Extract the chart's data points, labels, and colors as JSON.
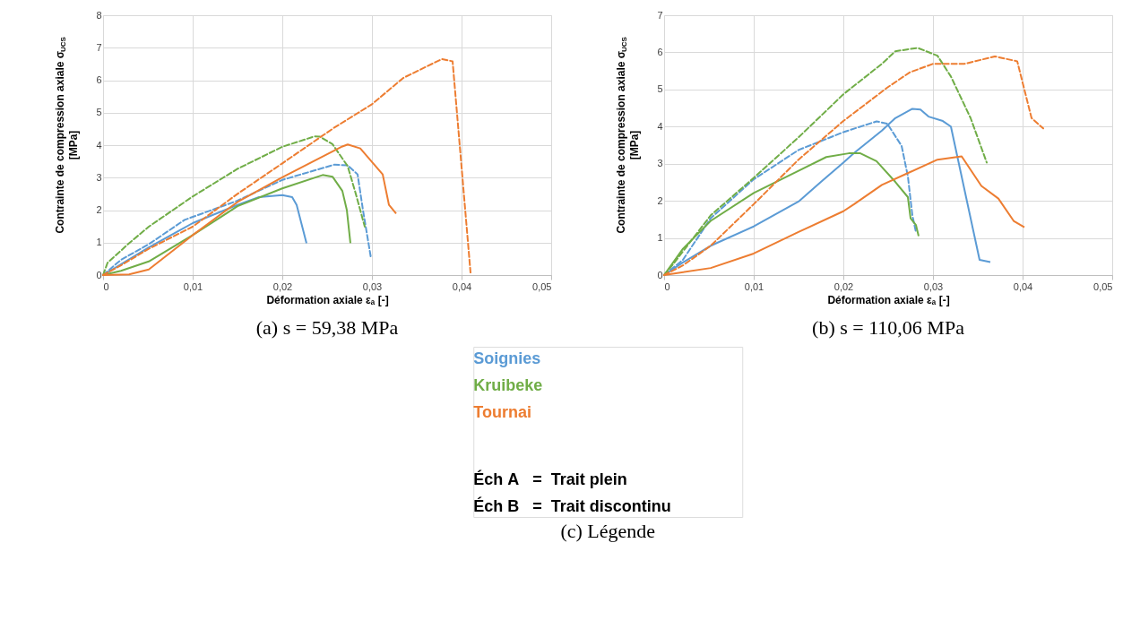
{
  "chart_data": [
    {
      "type": "line",
      "title": "(a) s = 59,38 MPa",
      "xlabel": "Déformation axiale εₐ  [-]",
      "ylabel": "Contrainte de compression axiale σ$_{UCS}$ [MPa]",
      "xlim": [
        0,
        0.05
      ],
      "xticks": [
        0,
        {
          "value": 0.01,
          "label": "0,01"
        },
        {
          "value": 0.02,
          "label": "0,02"
        },
        {
          "value": 0.03,
          "label": "0,03"
        },
        {
          "value": 0.04,
          "label": "0,04"
        },
        {
          "value": 0.05,
          "label": "0,05"
        }
      ],
      "ylim": [
        0,
        8
      ],
      "yticks": [
        0,
        1,
        2,
        3,
        4,
        5,
        6,
        7,
        8
      ],
      "grid": true,
      "marker": "none",
      "series": [
        {
          "color": "#5b9bd5",
          "line_style": "solid",
          "x": [
            0,
            0.0051,
            0.01,
            0.015,
            0.0174,
            0.02,
            0.0211,
            0.0216,
            0.0227
          ],
          "values": [
            0,
            0.85,
            1.6,
            2.16,
            2.4,
            2.46,
            2.4,
            2.16,
            0.98
          ]
        },
        {
          "color": "#5b9bd5",
          "line_style": "dashed",
          "x": [
            0,
            0.002,
            0.0051,
            0.0091,
            0.015,
            0.02,
            0.0258,
            0.0273,
            0.0284,
            0.029,
            0.0299
          ],
          "values": [
            0,
            0.47,
            0.95,
            1.7,
            2.29,
            2.93,
            3.4,
            3.38,
            3.1,
            2.0,
            0.51
          ]
        },
        {
          "color": "#70ad47",
          "line_style": "solid",
          "x": [
            0,
            0.002,
            0.0051,
            0.01,
            0.015,
            0.02,
            0.0245,
            0.0256,
            0.0267,
            0.0272,
            0.0276
          ],
          "values": [
            0,
            0.13,
            0.42,
            1.23,
            2.12,
            2.67,
            3.08,
            3.03,
            2.59,
            2.0,
            0.98
          ]
        },
        {
          "color": "#70ad47",
          "line_style": "dashed",
          "x": [
            0,
            0.0005,
            0.0029,
            0.0051,
            0.01,
            0.015,
            0.02,
            0.0236,
            0.0242,
            0.0256,
            0.0273,
            0.0282,
            0.0292
          ],
          "values": [
            0,
            0.38,
            0.98,
            1.49,
            2.42,
            3.27,
            3.95,
            4.27,
            4.26,
            4.03,
            3.35,
            2.5,
            1.49
          ]
        },
        {
          "color": "#ed7d31",
          "line_style": "solid",
          "x": [
            0,
            0.0029,
            0.0051,
            0.01,
            0.015,
            0.02,
            0.0267,
            0.0273,
            0.0287,
            0.0312,
            0.0319,
            0.0327
          ],
          "values": [
            0,
            0.02,
            0.17,
            1.23,
            2.25,
            3.01,
            3.96,
            4.02,
            3.9,
            3.1,
            2.16,
            1.89
          ]
        },
        {
          "color": "#ed7d31",
          "line_style": "dashed",
          "x": [
            0,
            0.002,
            0.0051,
            0.01,
            0.015,
            0.02,
            0.0258,
            0.03,
            0.0335,
            0.0378,
            0.039,
            0.041
          ],
          "values": [
            0,
            0.3,
            0.81,
            1.49,
            2.5,
            3.44,
            4.54,
            5.26,
            6.07,
            6.65,
            6.58,
            0.08
          ]
        }
      ]
    },
    {
      "type": "line",
      "title": "(b) s = 110,06 MPa",
      "xlabel": "Déformation axiale εₐ  [-]",
      "ylabel": "Contrainte de compression axiale σ$_{UCS}$ [MPa]",
      "xlim": [
        0,
        0.05
      ],
      "xticks": [
        0,
        {
          "value": 0.01,
          "label": "0,01"
        },
        {
          "value": 0.02,
          "label": "0,02"
        },
        {
          "value": 0.03,
          "label": "0,03"
        },
        {
          "value": 0.04,
          "label": "0,04"
        },
        {
          "value": 0.05,
          "label": "0,05"
        }
      ],
      "ylim": [
        0,
        7
      ],
      "yticks": [
        0,
        1,
        2,
        3,
        4,
        5,
        6,
        7
      ],
      "grid": true,
      "marker": "none",
      "series": [
        {
          "color": "#5b9bd5",
          "line_style": "solid",
          "x": [
            0,
            0.0021,
            0.0052,
            0.01,
            0.015,
            0.0175,
            0.02,
            0.0212,
            0.0243,
            0.0258,
            0.0277,
            0.0286,
            0.0295,
            0.0311,
            0.032,
            0.0352,
            0.0364
          ],
          "values": [
            0,
            0.34,
            0.79,
            1.31,
            1.98,
            2.51,
            3.03,
            3.29,
            3.89,
            4.23,
            4.48,
            4.46,
            4.27,
            4.15,
            4.0,
            0.41,
            0.35
          ]
        },
        {
          "color": "#5b9bd5",
          "line_style": "dashed",
          "x": [
            0,
            0.0021,
            0.0052,
            0.01,
            0.015,
            0.02,
            0.0237,
            0.0249,
            0.0265,
            0.0272,
            0.0277,
            0.0281
          ],
          "values": [
            0,
            0.41,
            1.53,
            2.58,
            3.37,
            3.85,
            4.14,
            4.08,
            3.48,
            2.66,
            1.61,
            1.16
          ]
        },
        {
          "color": "#70ad47",
          "line_style": "solid",
          "x": [
            0,
            0.0021,
            0.0052,
            0.01,
            0.015,
            0.0181,
            0.0206,
            0.0219,
            0.0237,
            0.0258,
            0.0272,
            0.0275,
            0.0281,
            0.0284
          ],
          "values": [
            0,
            0.71,
            1.46,
            2.21,
            2.81,
            3.18,
            3.28,
            3.28,
            3.07,
            2.51,
            2.1,
            1.53,
            1.35,
            1.05
          ]
        },
        {
          "color": "#70ad47",
          "line_style": "dashed",
          "x": [
            0,
            0.0009,
            0.0052,
            0.01,
            0.015,
            0.02,
            0.0243,
            0.0258,
            0.0283,
            0.0305,
            0.032,
            0.0342,
            0.036
          ],
          "values": [
            0,
            0.26,
            1.61,
            2.62,
            3.71,
            4.87,
            5.69,
            6.03,
            6.12,
            5.91,
            5.35,
            4.23,
            3.03
          ]
        },
        {
          "color": "#ed7d31",
          "line_style": "solid",
          "x": [
            0,
            0.0052,
            0.01,
            0.015,
            0.02,
            0.0212,
            0.0243,
            0.0274,
            0.0305,
            0.0332,
            0.0354,
            0.0373,
            0.039,
            0.0402
          ],
          "values": [
            0,
            0.19,
            0.58,
            1.16,
            1.72,
            1.91,
            2.43,
            2.77,
            3.11,
            3.2,
            2.4,
            2.06,
            1.46,
            1.29
          ]
        },
        {
          "color": "#ed7d31",
          "line_style": "dashed",
          "x": [
            0,
            0.0021,
            0.0052,
            0.01,
            0.015,
            0.02,
            0.0249,
            0.0274,
            0.03,
            0.0335,
            0.0369,
            0.0394,
            0.041,
            0.0423
          ],
          "values": [
            0,
            0.26,
            0.79,
            1.91,
            3.11,
            4.15,
            5.05,
            5.46,
            5.69,
            5.69,
            5.89,
            5.76,
            4.23,
            3.95
          ]
        }
      ]
    },
    {
      "type": "other",
      "title": "(c) Légende",
      "annotations": [
        "Soignies",
        "Kruibeke",
        "Tournai",
        "Éch A   =  Trait plein",
        "Éch B   =  Trait discontinu"
      ],
      "colors": [
        "#5b9bd5",
        "#70ad47",
        "#ed7d31",
        "#000000",
        "#000000"
      ]
    }
  ]
}
